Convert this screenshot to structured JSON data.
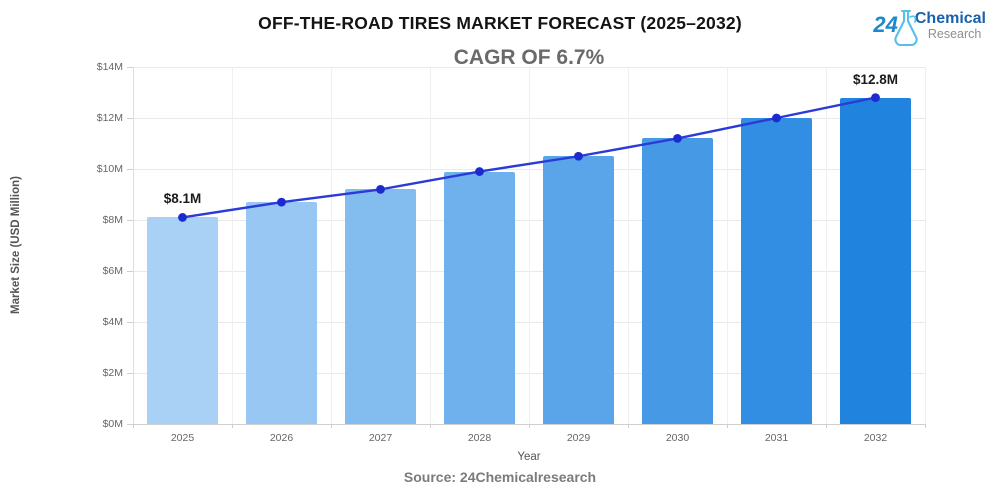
{
  "header": {
    "title": "OFF-THE-ROAD TIRES MARKET FORECAST (2025–2032)",
    "subtitle": "CAGR OF 6.7%"
  },
  "logo": {
    "number": "24",
    "line1": "Chemical",
    "line2": "Research",
    "number_color": "#1e88cc",
    "flask_color": "#56c0ea",
    "line1_color": "#1a61ad",
    "line2_color": "#8b8f93"
  },
  "chart_data": {
    "type": "bar",
    "title": "OFF-THE-ROAD TIRES MARKET FORECAST (2025–2032)",
    "subtitle": "CAGR OF 6.7%",
    "categories": [
      "2025",
      "2026",
      "2027",
      "2028",
      "2029",
      "2030",
      "2031",
      "2032"
    ],
    "series": [
      {
        "name": "Market Size bars",
        "type": "bar",
        "values": [
          8.1,
          8.7,
          9.2,
          9.9,
          10.5,
          11.2,
          12.0,
          12.8
        ],
        "colors": [
          "#a9d0f5",
          "#97c7f2",
          "#83bcef",
          "#6fb1ec",
          "#5aa5e9",
          "#4599e5",
          "#318ee2",
          "#2084de"
        ]
      },
      {
        "name": "Trend line",
        "type": "line",
        "values": [
          8.1,
          8.7,
          9.2,
          9.9,
          10.5,
          11.2,
          12.0,
          12.8
        ],
        "color": "#2a3bd8",
        "point_color": "#1c2bd0"
      }
    ],
    "annotations": [
      {
        "category": "2025",
        "text": "$8.1M"
      },
      {
        "category": "2032",
        "text": "$12.8M"
      }
    ],
    "xlabel": "Year",
    "ylabel": "Market Size (USD Million)",
    "ylim": [
      0,
      14
    ],
    "ytick_step": 2,
    "ytick_labels": [
      "$0M",
      "$2M",
      "$4M",
      "$6M",
      "$8M",
      "$10M",
      "$12M",
      "$14M"
    ],
    "grid": true,
    "legend": "none"
  },
  "footer": {
    "source": "Source: 24Chemicalresearch"
  }
}
